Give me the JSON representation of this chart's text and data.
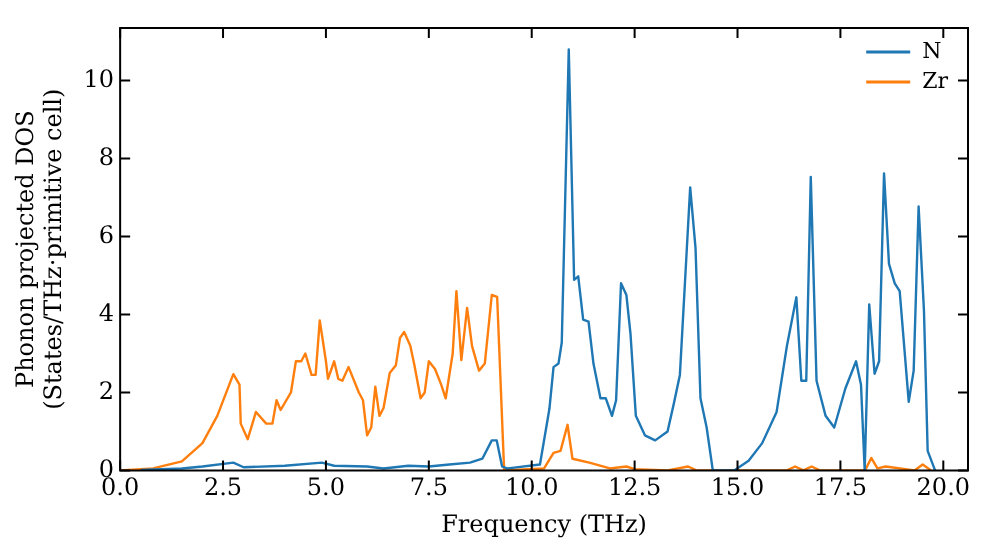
{
  "chart_data": {
    "type": "line",
    "xlabel": "Frequency (THz)",
    "ylabel": "Phonon projected DOS\n(States/THz·primitive cell)",
    "xlim": [
      0,
      20.6
    ],
    "ylim": [
      0,
      11.35
    ],
    "xticks": [
      {
        "value": 0,
        "label": "0.0"
      },
      {
        "value": 2.5,
        "label": "2.5"
      },
      {
        "value": 5,
        "label": "5.0"
      },
      {
        "value": 7.5,
        "label": "7.5"
      },
      {
        "value": 10,
        "label": "10.0"
      },
      {
        "value": 12.5,
        "label": "12.5"
      },
      {
        "value": 15,
        "label": "15.0"
      },
      {
        "value": 17.5,
        "label": "17.5"
      },
      {
        "value": 20,
        "label": "20.0"
      }
    ],
    "yticks": [
      0,
      2,
      4,
      6,
      8,
      10
    ],
    "grid": false,
    "legend": "top right",
    "marker": "none",
    "line_style": "solid",
    "series": [
      {
        "name": "N",
        "color": "#1f77b4",
        "x": [
          0.5,
          1.5,
          2,
          2.75,
          3,
          4,
          4.9,
          5.2,
          6,
          6.4,
          7,
          7.5,
          8,
          8.5,
          8.8,
          9.03,
          9.15,
          9.28,
          9.4,
          10.2,
          10.43,
          10.53,
          10.65,
          10.73,
          10.9,
          11.03,
          11.13,
          11.25,
          11.38,
          11.5,
          11.67,
          11.8,
          11.95,
          12.05,
          12.17,
          12.3,
          12.4,
          12.53,
          12.75,
          13,
          13.3,
          13.45,
          13.6,
          13.85,
          13.98,
          14.1,
          14.25,
          14.4,
          14.92,
          15.27,
          15.6,
          15.95,
          16.2,
          16.43,
          16.55,
          16.67,
          16.78,
          16.92,
          17.14,
          17.35,
          17.62,
          17.88,
          18,
          18.09,
          18.2,
          18.33,
          18.44,
          18.56,
          18.68,
          18.82,
          18.94,
          19.16,
          19.28,
          19.4,
          19.53,
          19.62,
          19.8
        ],
        "values": [
          0.01,
          0.05,
          0.1,
          0.2,
          0.08,
          0.12,
          0.2,
          0.12,
          0.1,
          0.05,
          0.12,
          0.1,
          0.15,
          0.2,
          0.3,
          0.77,
          0.77,
          0.1,
          0.05,
          0.15,
          1.58,
          2.65,
          2.74,
          3.28,
          10.8,
          4.89,
          4.98,
          3.87,
          3.82,
          2.74,
          1.85,
          1.85,
          1.4,
          1.8,
          4.8,
          4.5,
          3.5,
          1.4,
          0.9,
          0.77,
          1,
          1.7,
          2.45,
          7.26,
          5.7,
          1.85,
          1.1,
          0,
          0,
          0.25,
          0.7,
          1.5,
          3.19,
          4.44,
          2.3,
          2.3,
          7.53,
          2.3,
          1.4,
          1.1,
          2.1,
          2.8,
          2.2,
          0,
          4.26,
          2.48,
          2.8,
          7.62,
          5.3,
          4.8,
          4.6,
          1.76,
          2.56,
          6.77,
          4.1,
          0.5,
          0
        ]
      },
      {
        "name": "Zr",
        "color": "#ff7f0e",
        "x": [
          0,
          0.8,
          1.5,
          2,
          2.36,
          2.75,
          2.9,
          2.93,
          3.1,
          3.3,
          3.55,
          3.7,
          3.8,
          3.9,
          4.15,
          4.27,
          4.4,
          4.5,
          4.65,
          4.75,
          4.85,
          5,
          5.05,
          5.2,
          5.3,
          5.4,
          5.55,
          5.8,
          5.9,
          6,
          6.1,
          6.2,
          6.3,
          6.4,
          6.55,
          6.7,
          6.8,
          6.9,
          7.05,
          7.15,
          7.3,
          7.4,
          7.5,
          7.65,
          7.8,
          7.91,
          8.08,
          8.17,
          8.29,
          8.43,
          8.55,
          8.72,
          8.86,
          9.03,
          9.16,
          9.33,
          10.3,
          10.53,
          10.7,
          10.87,
          10.99,
          11.4,
          11.9,
          12.3,
          12.5,
          13.3,
          13.8,
          14,
          16.2,
          16.4,
          16.6,
          16.8,
          17,
          18.1,
          18.25,
          18.4,
          18.6,
          19.3,
          19.5,
          19.7
        ],
        "values": [
          0,
          0.05,
          0.23,
          0.7,
          1.4,
          2.47,
          2.2,
          1.2,
          0.8,
          1.5,
          1.2,
          1.2,
          1.8,
          1.55,
          2,
          2.8,
          2.8,
          3,
          2.45,
          2.45,
          3.85,
          2.8,
          2.35,
          2.8,
          2.35,
          2.3,
          2.65,
          2,
          1.8,
          0.9,
          1.1,
          2.15,
          1.4,
          1.6,
          2.5,
          2.7,
          3.4,
          3.55,
          3.2,
          2.7,
          1.85,
          2,
          2.8,
          2.6,
          2.2,
          1.85,
          3,
          4.6,
          2.83,
          4.17,
          3.19,
          2.56,
          2.74,
          4.5,
          4.45,
          0,
          0.05,
          0.45,
          0.5,
          1.17,
          0.3,
          0.2,
          0.05,
          0.1,
          0.03,
          0,
          0.1,
          0,
          0,
          0.1,
          0,
          0.1,
          0,
          0,
          0.32,
          0.05,
          0.1,
          0,
          0.15,
          0
        ]
      }
    ]
  }
}
